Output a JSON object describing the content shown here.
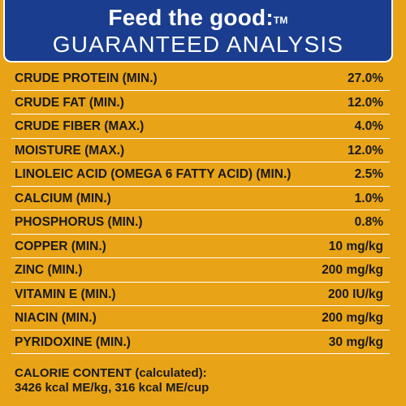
{
  "header": {
    "tagline": "Feed the good:",
    "trademark": "TM",
    "title": "GUARANTEED ANALYSIS"
  },
  "rows": [
    {
      "name": "CRUDE PROTEIN (MIN.)",
      "value": "27.0%"
    },
    {
      "name": "CRUDE FAT (MIN.)",
      "value": "12.0%"
    },
    {
      "name": "CRUDE FIBER (MAX.)",
      "value": "4.0%"
    },
    {
      "name": "MOISTURE (MAX.)",
      "value": "12.0%"
    },
    {
      "name": "LINOLEIC ACID (OMEGA 6 FATTY ACID) (MIN.)",
      "value": "2.5%"
    },
    {
      "name": "CALCIUM (MIN.)",
      "value": "1.0%"
    },
    {
      "name": "PHOSPHORUS (MIN.)",
      "value": "0.8%"
    },
    {
      "name": "COPPER (MIN.)",
      "value": "10 mg/kg"
    },
    {
      "name": "ZINC (MIN.)",
      "value": "200 mg/kg"
    },
    {
      "name": "VITAMIN E (MIN.)",
      "value": "200 IU/kg"
    },
    {
      "name": "NIACIN (MIN.)",
      "value": "200 mg/kg"
    },
    {
      "name": "PYRIDOXINE (MIN.)",
      "value": "30 mg/kg"
    }
  ],
  "calorie": {
    "label": "CALORIE CONTENT (calculated):",
    "value": "3426 kcal ME/kg, 316 kcal ME/cup"
  },
  "colors": {
    "background": "#e8a317",
    "header": "#1a3d8f",
    "text": "#1a1a1a",
    "divider": "#ffffff"
  }
}
